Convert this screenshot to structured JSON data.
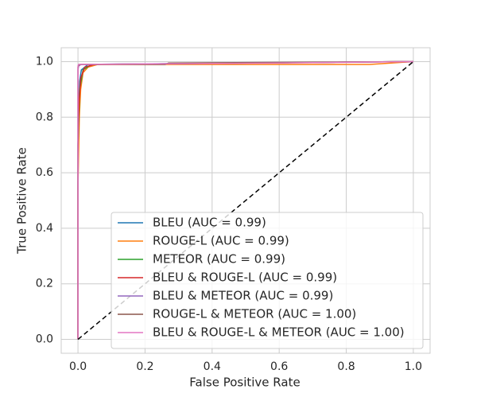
{
  "chart_data": {
    "type": "line",
    "xlabel": "False Positive Rate",
    "ylabel": "True Positive Rate",
    "xlim": [
      -0.05,
      1.05
    ],
    "ylim": [
      -0.05,
      1.05
    ],
    "xticks": [
      {
        "value": 0,
        "label": "0.0"
      },
      0.2,
      0.4,
      0.6,
      0.8,
      {
        "value": 1,
        "label": "1.0"
      }
    ],
    "yticks": [
      {
        "value": 0,
        "label": "0.0"
      },
      0.2,
      0.4,
      0.6,
      0.8,
      {
        "value": 1,
        "label": "1.0"
      }
    ],
    "grid": true,
    "legend": "lower right",
    "reference_line": {
      "x": [
        0,
        1
      ],
      "values": [
        0,
        1
      ],
      "color": "#000000",
      "dashed": true
    },
    "series": [
      {
        "name": "BLEU (AUC = 0.99)",
        "color": "#1f77b4",
        "x": [
          0,
          0,
          0.002,
          0.005,
          0.01,
          0.03,
          1
        ],
        "values": [
          0,
          0.55,
          0.8,
          0.93,
          0.97,
          0.99,
          1
        ]
      },
      {
        "name": "ROUGE-L (AUC = 0.99)",
        "color": "#ff7f0e",
        "x": [
          0,
          0,
          0.004,
          0.008,
          0.015,
          0.03,
          0.06,
          0.87,
          1
        ],
        "values": [
          0,
          0.55,
          0.8,
          0.9,
          0.96,
          0.98,
          0.99,
          0.99,
          1
        ]
      },
      {
        "name": "METEOR (AUC = 0.99)",
        "color": "#2ca02c",
        "x": [
          0,
          0,
          0.005,
          0.015,
          0.04,
          1
        ],
        "values": [
          0,
          0.7,
          0.9,
          0.97,
          0.99,
          1
        ]
      },
      {
        "name": "BLEU & ROUGE-L (AUC = 0.99)",
        "color": "#d62728",
        "x": [
          0,
          0,
          0.003,
          0.008,
          0.02,
          0.05,
          1
        ],
        "values": [
          0,
          0.7,
          0.85,
          0.94,
          0.98,
          0.99,
          1
        ]
      },
      {
        "name": "BLEU & METEOR (AUC = 0.99)",
        "color": "#9467bd",
        "x": [
          0,
          0,
          0.002,
          0.01,
          1
        ],
        "values": [
          0,
          0.97,
          0.985,
          0.99,
          1
        ]
      },
      {
        "name": "ROUGE-L & METEOR (AUC = 1.00)",
        "color": "#8c564b",
        "x": [
          0,
          0,
          0.003,
          0.26,
          0.27,
          1
        ],
        "values": [
          0,
          0.98,
          0.99,
          0.99,
          0.995,
          1
        ]
      },
      {
        "name": "BLEU & ROUGE-L & METEOR (AUC = 1.00)",
        "color": "#e377c2",
        "x": [
          0,
          0,
          0.002,
          0.6,
          1
        ],
        "values": [
          0,
          0.985,
          0.99,
          0.995,
          1
        ]
      }
    ]
  }
}
